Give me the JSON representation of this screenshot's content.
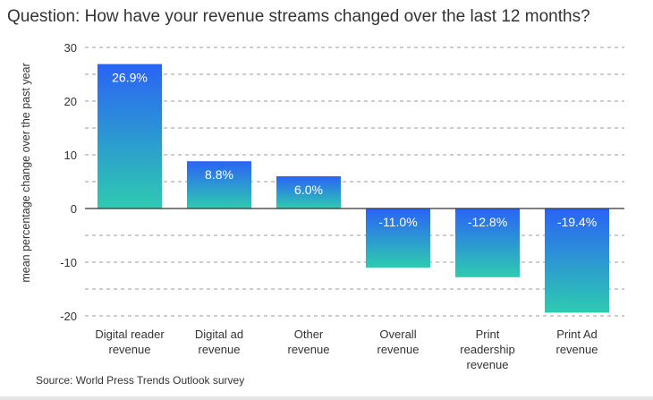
{
  "chart_data": {
    "type": "bar",
    "title": "Question: How have your revenue streams changed over the last 12 months?",
    "ylabel": "mean percentage change over the past year",
    "categories": [
      [
        "Digital reader",
        "revenue"
      ],
      [
        "Digital ad",
        "revenue"
      ],
      [
        "Other",
        "revenue"
      ],
      [
        "Overall",
        "revenue"
      ],
      [
        "Print",
        "readership",
        "revenue"
      ],
      [
        "Print Ad",
        "revenue"
      ]
    ],
    "values": [
      26.9,
      8.8,
      6.0,
      -11.0,
      -12.8,
      -19.4
    ],
    "value_labels": [
      "26.9%",
      "8.8%",
      "6.0%",
      "-11.0%",
      "-12.8%",
      "-19.4%"
    ],
    "ylim": [
      -20,
      30
    ],
    "yticks": [
      30,
      20,
      10,
      0,
      -10,
      -20
    ],
    "grid": true,
    "colors": {
      "bar_top": "#2a63f5",
      "bar_bottom": "#2ecbb0",
      "axis": "#333333",
      "grid": "#999999",
      "label": "#ffffff"
    },
    "source": "Source: World Press Trends Outlook survey"
  }
}
